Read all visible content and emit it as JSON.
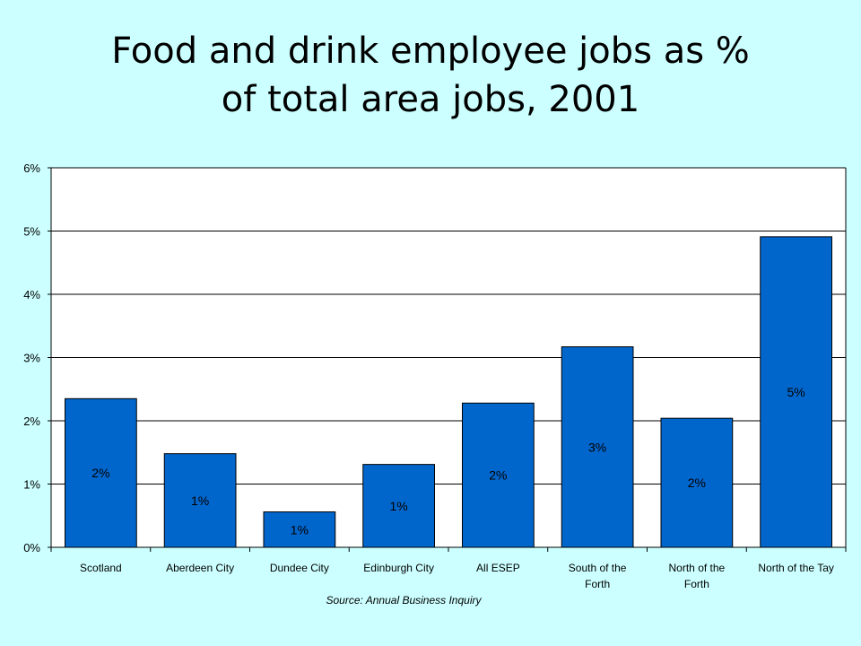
{
  "title": {
    "line1": "Food and drink employee jobs as %",
    "line2": "of total area jobs, 2001"
  },
  "source": "Source: Annual Business Inquiry",
  "colors": {
    "background": "#ccffff",
    "bar": "#0066cc",
    "gridline": "#000000"
  },
  "chart_data": {
    "type": "bar",
    "categories": [
      "Scotland",
      "Aberdeen City",
      "Dundee City",
      "Edinburgh City",
      "All ESEP",
      "South of the Forth",
      "North of the Forth",
      "North of the Tay"
    ],
    "category_lines": [
      [
        "Scotland"
      ],
      [
        "Aberdeen City"
      ],
      [
        "Dundee City"
      ],
      [
        "Edinburgh City"
      ],
      [
        "All ESEP"
      ],
      [
        "South of the",
        "Forth"
      ],
      [
        "North of the",
        "Forth"
      ],
      [
        "North of the Tay"
      ]
    ],
    "values": [
      2.35,
      1.48,
      0.56,
      1.31,
      2.28,
      3.17,
      2.04,
      4.91
    ],
    "data_labels": [
      "2%",
      "1%",
      "1%",
      "1%",
      "2%",
      "3%",
      "2%",
      "5%"
    ],
    "ylim": [
      0,
      6
    ],
    "yticks": [
      0,
      1,
      2,
      3,
      4,
      5,
      6
    ],
    "ytick_labels": [
      "0%",
      "1%",
      "2%",
      "3%",
      "4%",
      "5%",
      "6%"
    ],
    "grid": true,
    "xlabel": "",
    "ylabel": ""
  }
}
